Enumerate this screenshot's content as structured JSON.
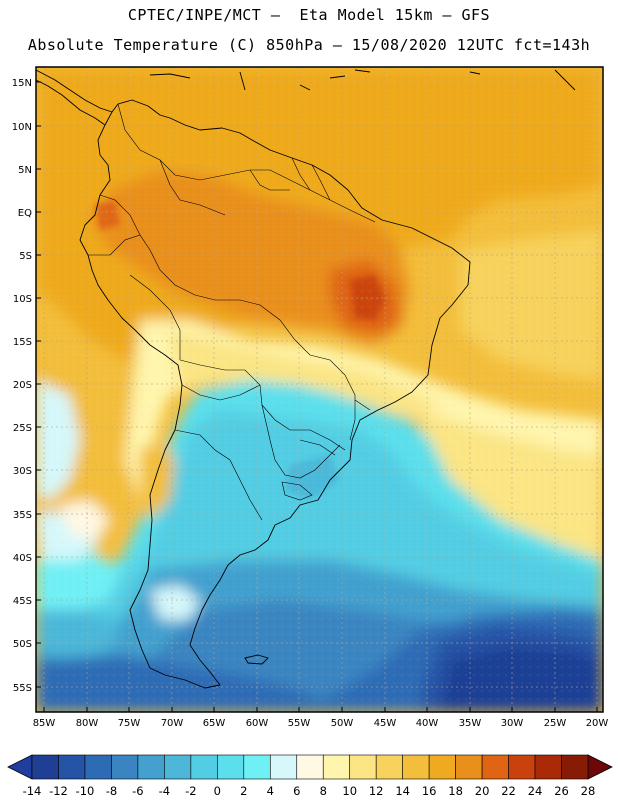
{
  "header": {
    "line1": "CPTEC/INPE/MCT –  Eta Model 15km – GFS",
    "line2": "Absolute Temperature (C) 850hPa – 15/08/2020 12UTC fct=143h"
  },
  "map": {
    "lat_ticks": [
      "15N",
      "10N",
      "5N",
      "EQ",
      "5S",
      "10S",
      "15S",
      "20S",
      "25S",
      "30S",
      "35S",
      "40S",
      "45S",
      "50S",
      "55S"
    ],
    "lon_ticks": [
      "85W",
      "80W",
      "75W",
      "70W",
      "65W",
      "60W",
      "55W",
      "50W",
      "45W",
      "40W",
      "35W",
      "30W",
      "25W",
      "20W"
    ]
  },
  "colorbar": {
    "colors": [
      "#1f3f95",
      "#2553a6",
      "#2d6cb5",
      "#3a85c1",
      "#43a0cf",
      "#4cb7d9",
      "#52cde3",
      "#5cdfec",
      "#6ff0f5",
      "#d6f8fb",
      "#fff8e3",
      "#fff5ad",
      "#fbe584",
      "#f7d25c",
      "#f3be3b",
      "#efaa1f",
      "#e98f1b",
      "#df6414",
      "#c9420d",
      "#aa2a08",
      "#861c05"
    ],
    "labels": [
      "-14",
      "-12",
      "-10",
      "-8",
      "-6",
      "-4",
      "-2",
      "0",
      "2",
      "4",
      "6",
      "8",
      "10",
      "12",
      "14",
      "16",
      "18",
      "20",
      "22",
      "24",
      "26",
      "28"
    ],
    "left_cap_color": "#203ea0",
    "right_cap_color": "#6d0708"
  }
}
